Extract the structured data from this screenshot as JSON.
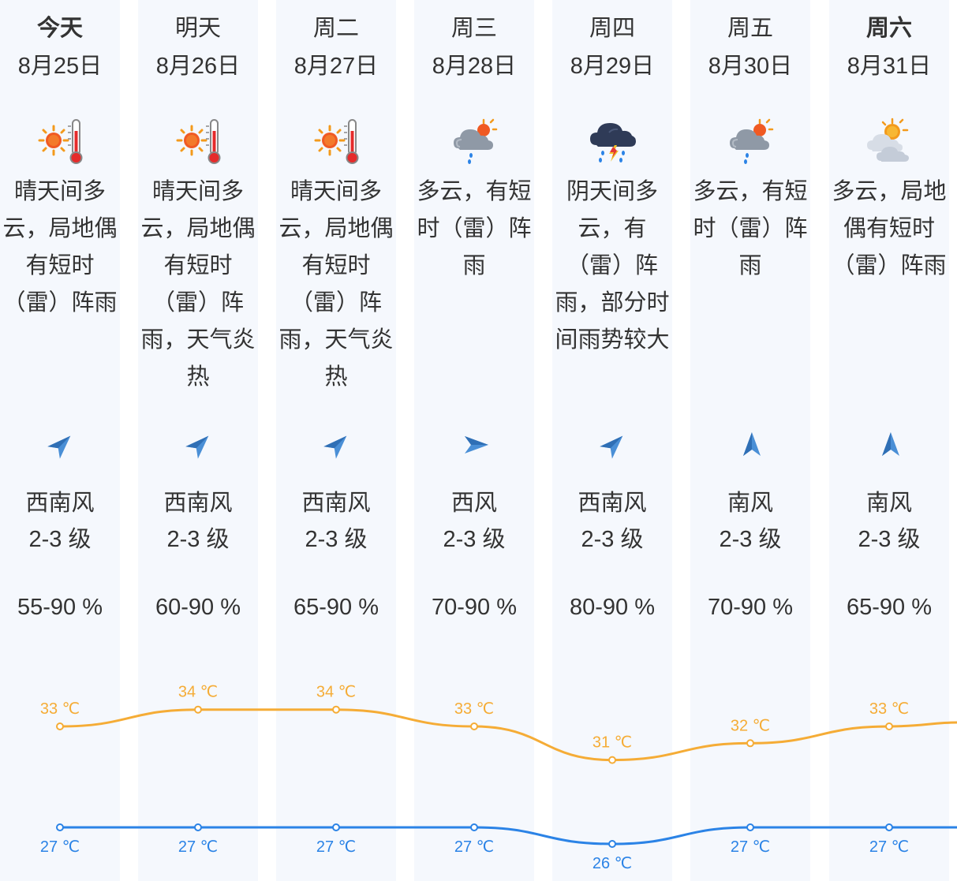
{
  "days": [
    {
      "name": "今天",
      "date": "8月25日",
      "icon": "sun-thermometer-icon",
      "desc": [
        "晴天间多",
        "云，局地偶",
        "有短时",
        "（雷）阵雨"
      ],
      "wind_dir": "西南风",
      "wind_arrow": "northeast-arrow-icon",
      "wind_level": "2-3 级",
      "humidity": "55-90 %",
      "high": "33 ℃",
      "low": "27 ℃"
    },
    {
      "name": "明天",
      "date": "8月26日",
      "icon": "sun-thermometer-icon",
      "desc": [
        "晴天间多",
        "云，局地偶",
        "有短时",
        "（雷）阵",
        "雨，天气炎",
        "热"
      ],
      "wind_dir": "西南风",
      "wind_arrow": "northeast-arrow-icon",
      "wind_level": "2-3 级",
      "humidity": "60-90 %",
      "high": "34 ℃",
      "low": "27 ℃"
    },
    {
      "name": "周二",
      "date": "8月27日",
      "icon": "sun-thermometer-icon",
      "desc": [
        "晴天间多",
        "云，局地偶",
        "有短时",
        "（雷）阵",
        "雨，天气炎",
        "热"
      ],
      "wind_dir": "西南风",
      "wind_arrow": "northeast-arrow-icon",
      "wind_level": "2-3 级",
      "humidity": "65-90 %",
      "high": "34 ℃",
      "low": "27 ℃"
    },
    {
      "name": "周三",
      "date": "8月28日",
      "icon": "cloud-sun-rain-icon",
      "desc": [
        "多云，有短",
        "时（雷）阵",
        "雨"
      ],
      "wind_dir": "西风",
      "wind_arrow": "east-arrow-icon",
      "wind_level": "2-3 级",
      "humidity": "70-90 %",
      "high": "33 ℃",
      "low": "27 ℃"
    },
    {
      "name": "周四",
      "date": "8月29日",
      "icon": "thunderstorm-cloud-icon",
      "desc": [
        "阴天间多",
        "云，有",
        "（雷）阵",
        "雨，部分时",
        "间雨势较大"
      ],
      "wind_dir": "西南风",
      "wind_arrow": "northeast-arrow-icon",
      "wind_level": "2-3 级",
      "humidity": "80-90 %",
      "high": "31 ℃",
      "low": "26 ℃"
    },
    {
      "name": "周五",
      "date": "8月30日",
      "icon": "cloud-sun-rain-icon",
      "desc": [
        "多云，有短",
        "时（雷）阵",
        "雨"
      ],
      "wind_dir": "南风",
      "wind_arrow": "north-arrow-icon",
      "wind_level": "2-3 级",
      "humidity": "70-90 %",
      "high": "32 ℃",
      "low": "27 ℃"
    },
    {
      "name": "周六",
      "date": "8月31日",
      "icon": "partly-cloudy-icon",
      "desc": [
        "多云，局地",
        "偶有短时",
        "（雷）阵雨"
      ],
      "wind_dir": "南风",
      "wind_arrow": "north-arrow-icon",
      "wind_level": "2-3 级",
      "humidity": "65-90 %",
      "high": "33 ℃",
      "low": "27 ℃"
    }
  ],
  "chart_data": {
    "type": "line",
    "categories": [
      "8月25日",
      "8月26日",
      "8月27日",
      "8月28日",
      "8月29日",
      "8月30日",
      "8月31日"
    ],
    "series": [
      {
        "values": [
          33,
          34,
          34,
          33,
          31,
          32,
          33
        ],
        "color": "#f5ac36"
      },
      {
        "values": [
          27,
          27,
          27,
          27,
          26,
          27,
          27
        ],
        "color": "#2b83e6"
      }
    ],
    "unit": "℃"
  },
  "colors": {
    "column_bg": "#f5f8fd",
    "text": "#333333",
    "arrow": "#4a8fd6",
    "high_line": "#f5ac36",
    "low_line": "#2b83e6"
  }
}
